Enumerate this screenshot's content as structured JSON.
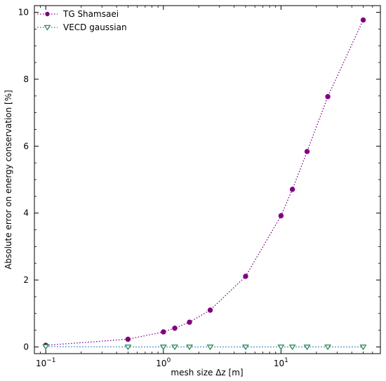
{
  "chart_data": {
    "type": "line",
    "x_scale": "log",
    "xlim": [
      0.08,
      70
    ],
    "ylim": [
      -0.2,
      10.2
    ],
    "xlabel": "mesh size Δz [m]",
    "ylabel": "Absolute error on energy conservation [%]",
    "x_ticks": [
      {
        "value": 0.1,
        "base": "10",
        "exp": "−1"
      },
      {
        "value": 1,
        "base": "10",
        "exp": "0"
      },
      {
        "value": 10,
        "base": "10",
        "exp": "1"
      }
    ],
    "y_ticks": [
      0,
      2,
      4,
      6,
      8,
      10
    ],
    "legend_position": "top-left",
    "series": [
      {
        "name": "TG Shamsaei",
        "color": "#800080",
        "marker": "circle",
        "line_style": "dotted",
        "x": [
          0.1,
          0.5,
          1.0,
          1.25,
          1.667,
          2.5,
          5,
          10,
          12.5,
          16.667,
          25,
          50
        ],
        "y": [
          0.05,
          0.23,
          0.45,
          0.56,
          0.74,
          1.1,
          2.11,
          3.92,
          4.71,
          5.84,
          7.48,
          9.77
        ]
      },
      {
        "name": "VECD gaussian",
        "color": "#2e8b57",
        "line_color": "#1f77b4",
        "marker": "triangle-down",
        "line_style": "dotted",
        "x": [
          0.1,
          0.5,
          1.0,
          1.25,
          1.667,
          2.5,
          5,
          10,
          12.5,
          16.667,
          25,
          50
        ],
        "y": [
          0.01,
          0.0,
          0.0,
          0.0,
          0.0,
          0.0,
          0.0,
          0.0,
          0.0,
          0.0,
          0.0,
          0.0
        ]
      }
    ]
  }
}
